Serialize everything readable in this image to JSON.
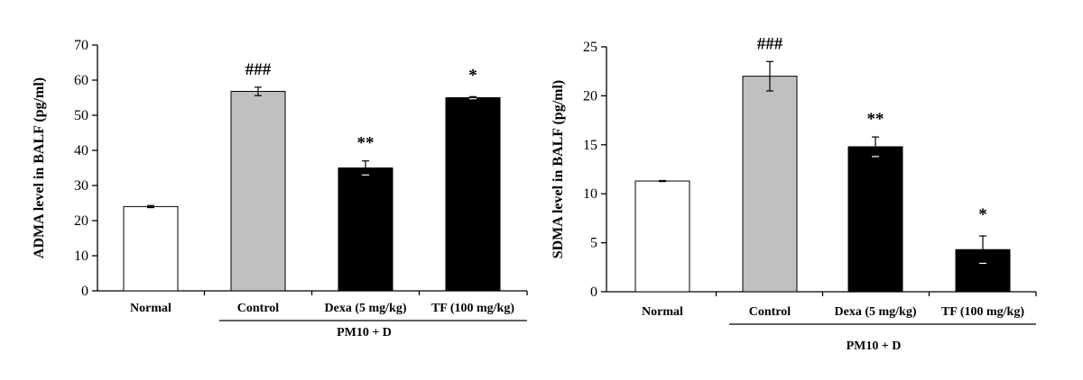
{
  "chart_data": [
    {
      "type": "bar",
      "ylabel": "ADMA level in BALF (pg/ml)",
      "categories": [
        "Normal",
        "Control",
        "Dexa (5 mg/kg)",
        "TF (100 mg/kg)"
      ],
      "values": [
        24,
        56.8,
        35,
        55
      ],
      "errors": [
        0.3,
        1.2,
        2.0,
        0.3
      ],
      "significance": [
        "",
        "###",
        "**",
        "*"
      ],
      "bar_colors": [
        "#ffffff",
        "#c0c0c0",
        "#000000",
        "#000000"
      ],
      "group_label": "PM10 + D",
      "ylim": [
        0,
        70
      ],
      "yticks": [
        0,
        10,
        20,
        30,
        40,
        50,
        60,
        70
      ],
      "grid": false
    },
    {
      "type": "bar",
      "ylabel": "SDMA level in BALF (pg/ml)",
      "categories": [
        "Normal",
        "Control",
        "Dexa (5 mg/kg)",
        "TF (100 mg/kg)"
      ],
      "values": [
        11.3,
        22,
        14.8,
        4.3
      ],
      "errors": [
        0.05,
        1.5,
        1.0,
        1.4
      ],
      "significance": [
        "",
        "###",
        "**",
        "*"
      ],
      "bar_colors": [
        "#ffffff",
        "#c0c0c0",
        "#000000",
        "#000000"
      ],
      "group_label": "PM10 + D",
      "ylim": [
        0,
        25
      ],
      "yticks": [
        0,
        5,
        10,
        15,
        20,
        25
      ],
      "grid": false
    }
  ]
}
